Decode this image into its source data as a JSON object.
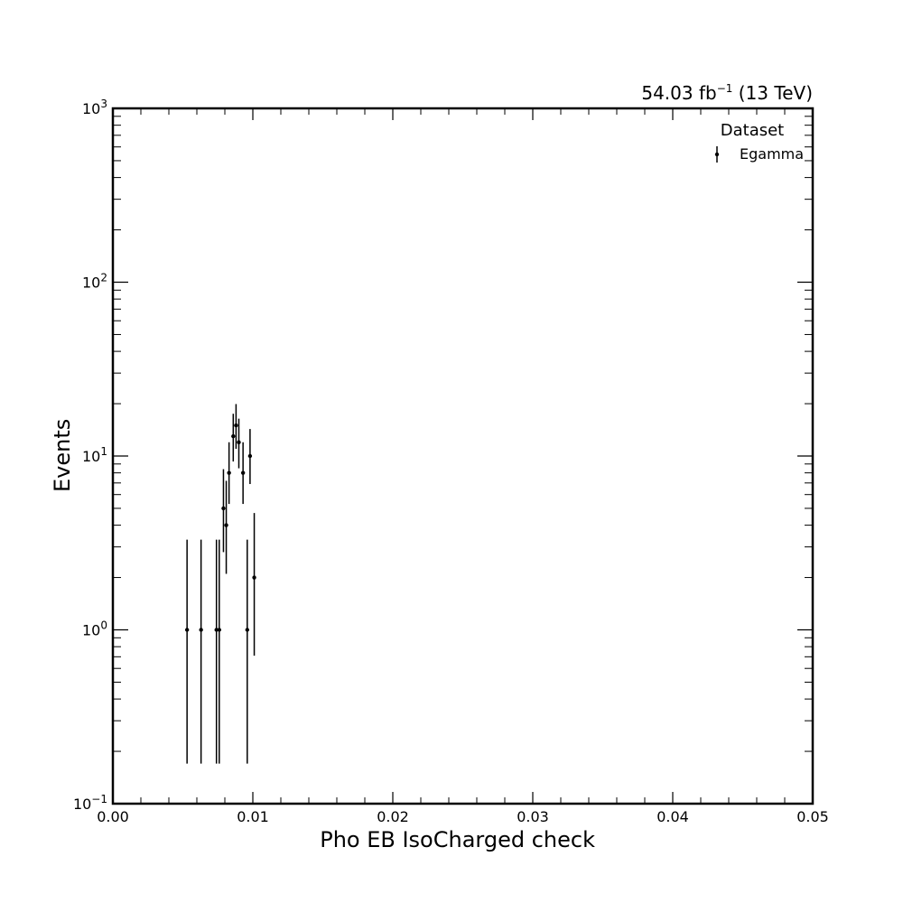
{
  "chart_data": {
    "type": "scatter",
    "xlabel": "Pho EB IsoCharged check",
    "ylabel": "Events",
    "xlim": [
      0.0,
      0.05
    ],
    "ylim": [
      0.1,
      1000
    ],
    "yscale": "log",
    "x_ticks": [
      "0.00",
      "0.01",
      "0.02",
      "0.03",
      "0.04",
      "0.05"
    ],
    "y_ticks": [
      {
        "base": "10",
        "exp": "−1"
      },
      {
        "base": "10",
        "exp": "0"
      },
      {
        "base": "10",
        "exp": "1"
      },
      {
        "base": "10",
        "exp": "2"
      },
      {
        "base": "10",
        "exp": "3"
      }
    ],
    "lumi_label": {
      "main": "54.03 fb",
      "exp": "−1",
      "tail": " (13 TeV)"
    },
    "legend": {
      "title": "Dataset",
      "placement": "top-right",
      "entries": [
        "Egamma"
      ]
    },
    "series": [
      {
        "name": "Egamma",
        "color": "#000000",
        "points": [
          {
            "x": 0.0053,
            "y": 1,
            "ylo": 0.17,
            "yhi": 3.3
          },
          {
            "x": 0.0063,
            "y": 1,
            "ylo": 0.17,
            "yhi": 3.3
          },
          {
            "x": 0.0074,
            "y": 1,
            "ylo": 0.17,
            "yhi": 3.3
          },
          {
            "x": 0.0076,
            "y": 1,
            "ylo": 0.17,
            "yhi": 3.3
          },
          {
            "x": 0.0079,
            "y": 5,
            "ylo": 2.8,
            "yhi": 8.4
          },
          {
            "x": 0.0081,
            "y": 4,
            "ylo": 2.1,
            "yhi": 7.2
          },
          {
            "x": 0.0083,
            "y": 8,
            "ylo": 5.3,
            "yhi": 12.0
          },
          {
            "x": 0.0086,
            "y": 13,
            "ylo": 9.3,
            "yhi": 17.5
          },
          {
            "x": 0.0088,
            "y": 15,
            "ylo": 11.0,
            "yhi": 19.9
          },
          {
            "x": 0.009,
            "y": 12,
            "ylo": 8.5,
            "yhi": 16.4
          },
          {
            "x": 0.0093,
            "y": 8,
            "ylo": 5.3,
            "yhi": 12.0
          },
          {
            "x": 0.0096,
            "y": 1,
            "ylo": 0.17,
            "yhi": 3.3
          },
          {
            "x": 0.0098,
            "y": 10,
            "ylo": 6.9,
            "yhi": 14.3
          },
          {
            "x": 0.0101,
            "y": 2,
            "ylo": 0.71,
            "yhi": 4.7
          }
        ]
      }
    ]
  }
}
